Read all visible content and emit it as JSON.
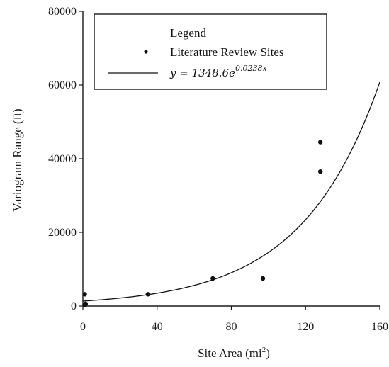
{
  "chart_data": {
    "type": "scatter",
    "xlabel": "Site Area (mi",
    "xlabel_sup": "2",
    "xlabel_end": ")",
    "ylabel": "Variogram Range (ft)",
    "xlim": [
      0,
      160
    ],
    "ylim": [
      0,
      80000
    ],
    "x_ticks": [
      0,
      40,
      80,
      120,
      160
    ],
    "y_ticks": [
      0,
      20000,
      40000,
      60000,
      80000
    ],
    "grid": false,
    "legend": {
      "title": "Legend",
      "placement": "top-left",
      "points_label": "Literature Review Sites",
      "curve_label_prefix": "y = 1348.6e",
      "curve_label_exp": "0.0238x"
    },
    "series": [
      {
        "name": "Literature Review Sites",
        "points": [
          {
            "x": 1,
            "y": 3200
          },
          {
            "x": 1,
            "y": 300
          },
          {
            "x": 1.5,
            "y": 600
          },
          {
            "x": 35,
            "y": 3200
          },
          {
            "x": 70,
            "y": 7500
          },
          {
            "x": 97,
            "y": 7500
          },
          {
            "x": 128,
            "y": 44500
          },
          {
            "x": 128,
            "y": 36500
          }
        ]
      }
    ],
    "fit": {
      "a": 1348.6,
      "b": 0.0238
    }
  }
}
